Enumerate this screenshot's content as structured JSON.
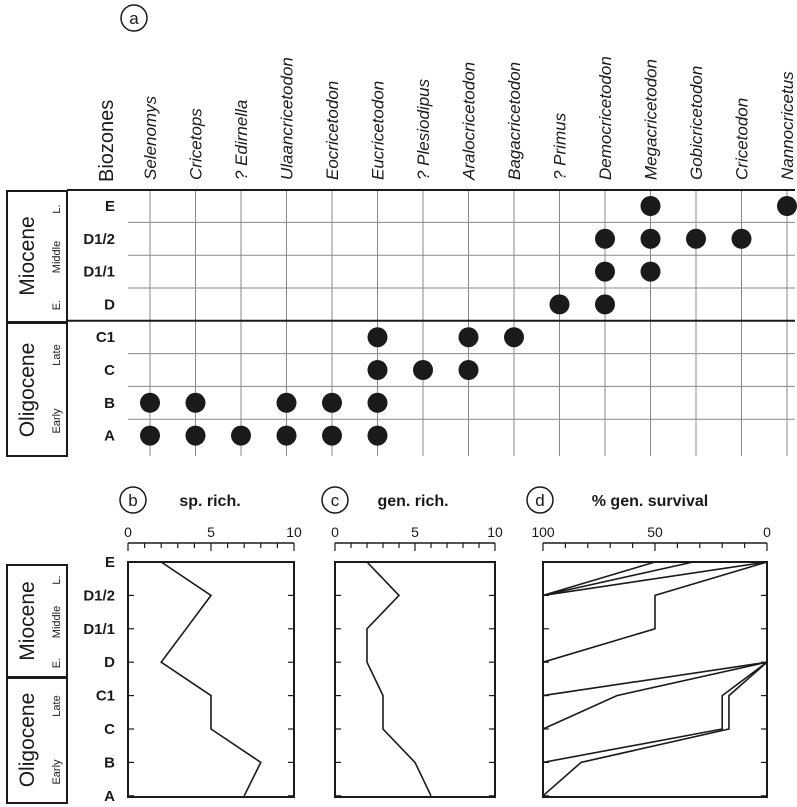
{
  "panel_labels": {
    "a": "a",
    "b": "b",
    "c": "c",
    "d": "d"
  },
  "header_label": "Biozones",
  "epochs": [
    {
      "name": "Miocene",
      "parts": [
        "L.",
        "Middle",
        "E."
      ]
    },
    {
      "name": "Oligocene",
      "parts": [
        "Late",
        "Early"
      ]
    }
  ],
  "chart_data": [
    {
      "type": "table",
      "name": "occurrence",
      "columns": [
        "Selenomys",
        "Cricetops",
        "? Edirnella",
        "Ulaancricetodon",
        "Eocricetodon",
        "Eucricetodon",
        "? Plesiodipus",
        "Aralocricetodon",
        "Bagacricetodon",
        "? Primus",
        "Democricetodon",
        "Megacricetodon",
        "Gobicricetodon",
        "Cricetodon",
        "Nannocricetus"
      ],
      "rows": [
        "E",
        "D1/2",
        "D1/1",
        "D",
        "C1",
        "C",
        "B",
        "A"
      ],
      "occurrences": [
        [
          0,
          0,
          0,
          0,
          0,
          0,
          0,
          0,
          0,
          0,
          0,
          1,
          0,
          0,
          1
        ],
        [
          0,
          0,
          0,
          0,
          0,
          0,
          0,
          0,
          0,
          0,
          1,
          1,
          1,
          1,
          0
        ],
        [
          0,
          0,
          0,
          0,
          0,
          0,
          0,
          0,
          0,
          0,
          1,
          1,
          0,
          0,
          0
        ],
        [
          0,
          0,
          0,
          0,
          0,
          0,
          0,
          0,
          0,
          1,
          1,
          0,
          0,
          0,
          0
        ],
        [
          0,
          0,
          0,
          0,
          0,
          1,
          0,
          1,
          1,
          0,
          0,
          0,
          0,
          0,
          0
        ],
        [
          0,
          0,
          0,
          0,
          0,
          1,
          1,
          1,
          0,
          0,
          0,
          0,
          0,
          0,
          0
        ],
        [
          1,
          1,
          0,
          1,
          1,
          1,
          0,
          0,
          0,
          0,
          0,
          0,
          0,
          0,
          0
        ],
        [
          1,
          1,
          1,
          1,
          1,
          1,
          0,
          0,
          0,
          0,
          0,
          0,
          0,
          0,
          0
        ]
      ]
    },
    {
      "type": "line",
      "name": "species-richness",
      "title": "sp. rich.",
      "xlim": [
        0,
        10
      ],
      "xticks": [
        "0",
        "5",
        "10"
      ],
      "categories": [
        "E",
        "D1/2",
        "D1/1",
        "D",
        "C1",
        "C",
        "B",
        "A"
      ],
      "values": [
        2,
        5,
        3.5,
        2,
        5,
        5,
        8,
        7
      ]
    },
    {
      "type": "line",
      "name": "genus-richness",
      "title": "gen. rich.",
      "xlim": [
        0,
        10
      ],
      "xticks": [
        "0",
        "5",
        "10"
      ],
      "categories": [
        "E",
        "D1/2",
        "D1/1",
        "D",
        "C1",
        "C",
        "B",
        "A"
      ],
      "values": [
        2,
        4,
        2,
        2,
        3,
        3,
        5,
        6
      ]
    },
    {
      "type": "line",
      "name": "genus-survival",
      "title": "% gen. survival",
      "xlim": [
        100,
        0
      ],
      "xticks": [
        "100",
        "50",
        "0"
      ],
      "categories": [
        "E",
        "D1/2",
        "D1/1",
        "D",
        "C1",
        "C",
        "B",
        "A"
      ],
      "series": [
        {
          "points": [
            [
              "D1/2",
              100
            ],
            [
              "E",
              50
            ]
          ]
        },
        {
          "points": [
            [
              "D1/2",
              100
            ],
            [
              "E",
              33
            ]
          ]
        },
        {
          "points": [
            [
              "D1/2",
              100
            ],
            [
              "E",
              0
            ]
          ]
        },
        {
          "points": [
            [
              "D",
              100
            ],
            [
              "D1/1",
              50
            ],
            [
              "D1/2",
              50
            ],
            [
              "E",
              0
            ]
          ]
        },
        {
          "points": [
            [
              "C1",
              100
            ],
            [
              "D",
              0
            ]
          ]
        },
        {
          "points": [
            [
              "C",
              100
            ],
            [
              "C1",
              67
            ],
            [
              "D",
              0
            ]
          ]
        },
        {
          "points": [
            [
              "B",
              100
            ],
            [
              "C",
              20
            ],
            [
              "C1",
              20
            ],
            [
              "D",
              0
            ]
          ]
        },
        {
          "points": [
            [
              "A",
              100
            ],
            [
              "B",
              83
            ],
            [
              "C",
              17
            ],
            [
              "C1",
              17
            ],
            [
              "D",
              0
            ]
          ]
        }
      ]
    }
  ]
}
